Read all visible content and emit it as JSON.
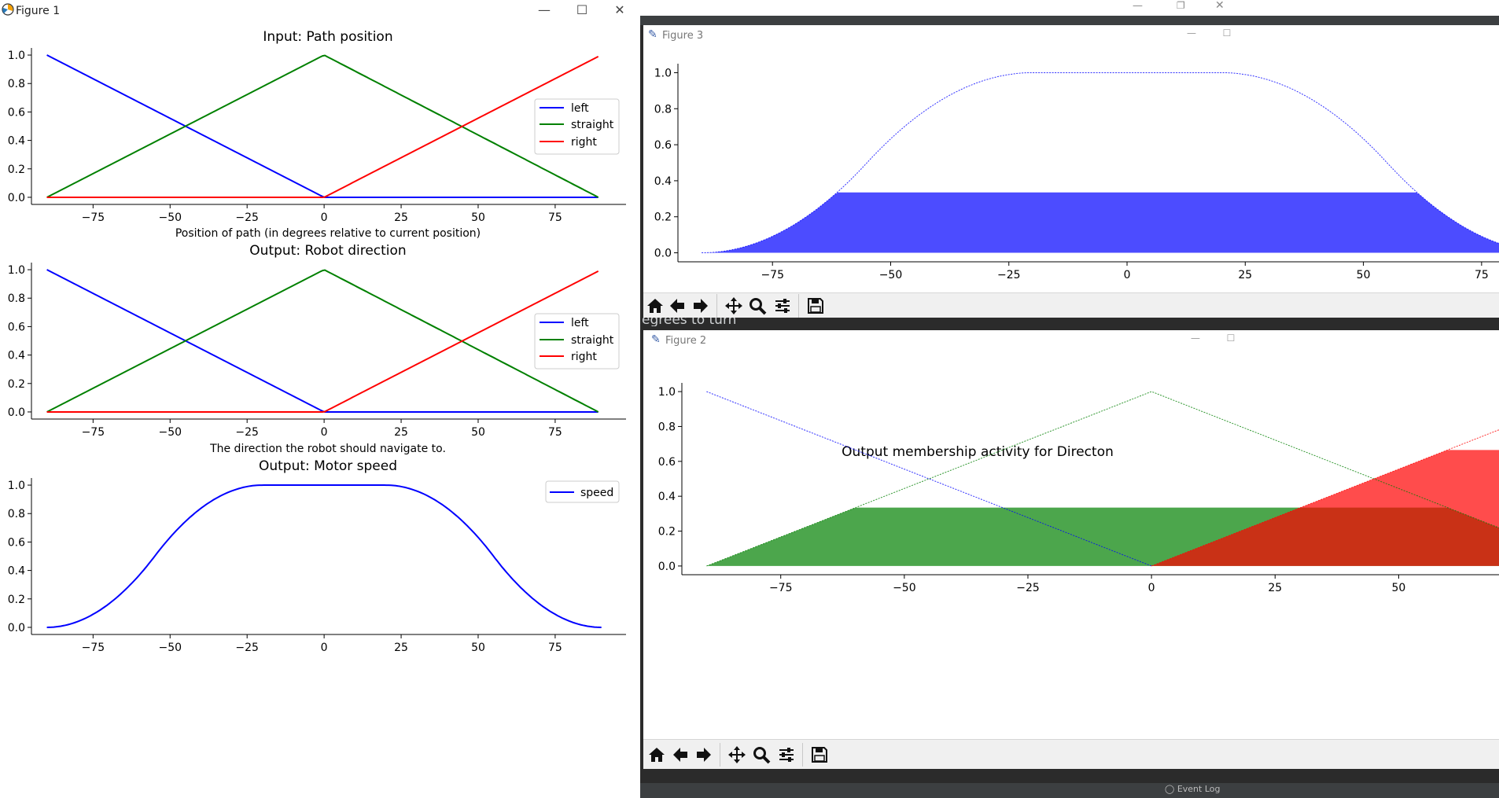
{
  "fig1": {
    "title": "Figure 1",
    "charts": [
      {
        "type": "line",
        "title": "Input: Path position",
        "xlabel": "Position of path (in degrees relative to current position)",
        "xticks": [
          "−75",
          "−50",
          "−25",
          "0",
          "25",
          "50",
          "75"
        ],
        "yticks": [
          "0.0",
          "0.2",
          "0.4",
          "0.6",
          "0.8",
          "1.0"
        ],
        "legend": [
          "left",
          "straight",
          "right"
        ]
      },
      {
        "type": "line",
        "title": "Output: Robot direction",
        "xlabel": "The direction the robot should navigate to.",
        "xticks": [
          "−75",
          "−50",
          "−25",
          "0",
          "25",
          "50",
          "75"
        ],
        "yticks": [
          "0.0",
          "0.2",
          "0.4",
          "0.6",
          "0.8",
          "1.0"
        ],
        "legend": [
          "left",
          "straight",
          "right"
        ]
      },
      {
        "type": "line",
        "title": "Output: Motor speed",
        "xticks": [
          "−75",
          "−50",
          "−25",
          "0",
          "25",
          "50",
          "75"
        ],
        "yticks": [
          "0.0",
          "0.2",
          "0.4",
          "0.6",
          "0.8",
          "1.0"
        ],
        "legend": [
          "speed"
        ]
      }
    ]
  },
  "fig3": {
    "title": "Figure 3"
  },
  "fig2": {
    "title": "Figure 2",
    "chart_title": "Output membership activity for Directon"
  },
  "behind_text": "egrees to turn",
  "event_log": "Event Log",
  "colors": {
    "left": "#0000ff",
    "straight": "#008000",
    "right": "#ff0000",
    "speed": "#0000ff"
  },
  "chart_data": [
    {
      "type": "line",
      "title": "Input: Path position",
      "xlabel": "Position of path (in degrees relative to current position)",
      "xlim": [
        -95,
        98
      ],
      "ylim": [
        -0.05,
        1.05
      ],
      "series": [
        {
          "name": "left",
          "x": [
            -90,
            0,
            89
          ],
          "y": [
            1.0,
            0.0,
            0.0
          ]
        },
        {
          "name": "straight",
          "x": [
            -90,
            0,
            89
          ],
          "y": [
            0.0,
            1.0,
            0.0
          ]
        },
        {
          "name": "right",
          "x": [
            -90,
            0,
            89
          ],
          "y": [
            0.0,
            0.0,
            0.99
          ]
        }
      ]
    },
    {
      "type": "line",
      "title": "Output: Robot direction",
      "xlabel": "The direction the robot should navigate to.",
      "xlim": [
        -95,
        98
      ],
      "ylim": [
        -0.05,
        1.05
      ],
      "series": [
        {
          "name": "left",
          "x": [
            -90,
            0,
            89
          ],
          "y": [
            1.0,
            0.0,
            0.0
          ]
        },
        {
          "name": "straight",
          "x": [
            -90,
            0,
            89
          ],
          "y": [
            0.0,
            1.0,
            0.0
          ]
        },
        {
          "name": "right",
          "x": [
            -90,
            0,
            89
          ],
          "y": [
            0.0,
            0.0,
            0.99
          ]
        }
      ]
    },
    {
      "type": "line",
      "title": "Output: Motor speed",
      "xlim": [
        -95,
        98
      ],
      "ylim": [
        -0.05,
        1.05
      ],
      "series": [
        {
          "name": "speed",
          "shape": "smooth-trapezoid",
          "support": [
            -90,
            90
          ],
          "plateau": [
            -20,
            20
          ]
        }
      ]
    },
    {
      "type": "area",
      "xlim": [
        -95,
        88
      ],
      "ylim": [
        -0.05,
        1.05
      ],
      "xticks": [
        "−75",
        "−50",
        "−25",
        "0",
        "25",
        "50",
        "75"
      ],
      "yticks": [
        "0.0",
        "0.2",
        "0.4",
        "0.6",
        "0.8",
        "1.0"
      ],
      "series": [
        {
          "name": "speed",
          "shape": "smooth-trapezoid",
          "support": [
            -90,
            90
          ],
          "plateau": [
            -20,
            20
          ],
          "fill_cap": 0.335
        }
      ]
    },
    {
      "type": "area",
      "title": "Output membership activity for Directon",
      "xlim": [
        -95,
        80
      ],
      "ylim": [
        -0.05,
        1.05
      ],
      "xticks": [
        "−75",
        "−50",
        "−25",
        "0",
        "25",
        "50",
        "75"
      ],
      "yticks": [
        "0.0",
        "0.2",
        "0.4",
        "0.6",
        "0.8",
        "1.0"
      ],
      "series": [
        {
          "name": "left",
          "x": [
            -90,
            0
          ],
          "y": [
            1.0,
            0.0
          ],
          "fill_cap": 0
        },
        {
          "name": "straight",
          "x": [
            -90,
            0,
            90
          ],
          "y": [
            0.0,
            1.0,
            0.0
          ],
          "fill_cap": 0.335
        },
        {
          "name": "right",
          "x": [
            0,
            90
          ],
          "y": [
            0.0,
            1.0
          ],
          "fill_cap": 0.665
        }
      ]
    }
  ]
}
